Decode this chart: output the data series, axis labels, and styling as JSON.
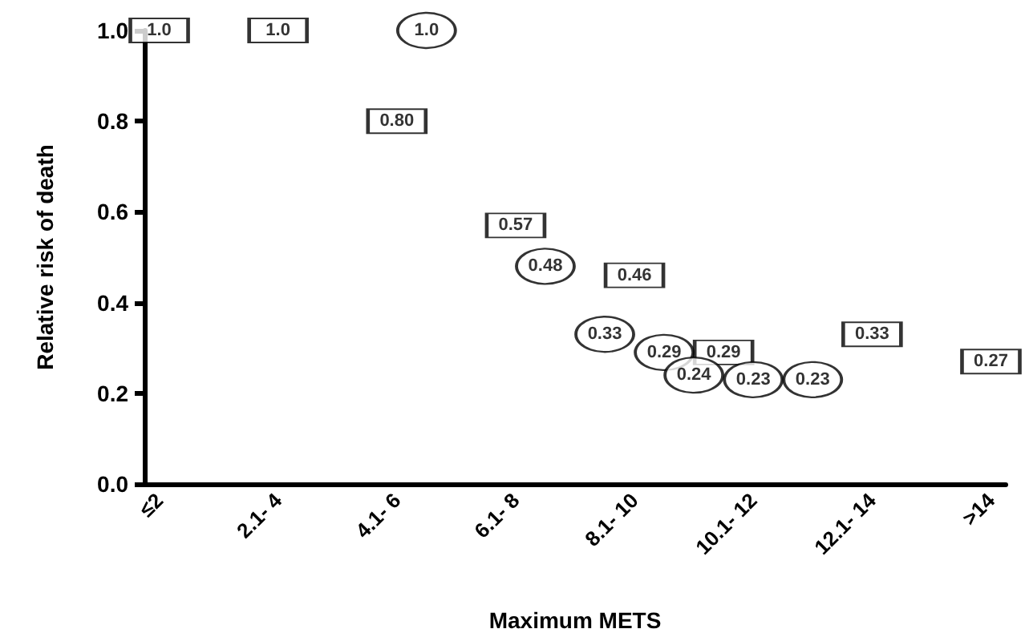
{
  "chart_data": {
    "type": "scatter",
    "xlabel": "Maximum METS",
    "ylabel": "Relative risk of death",
    "categories": [
      "≤2",
      null,
      null,
      null,
      "2.1- 4",
      null,
      null,
      null,
      "4.1- 6",
      null,
      null,
      null,
      "6.1- 8",
      null,
      null,
      null,
      "8.1- 10",
      null,
      null,
      null,
      "10.1- 12",
      null,
      null,
      null,
      "12.1- 14",
      null,
      null,
      null,
      ">14"
    ],
    "ylim": [
      0,
      1.0
    ],
    "yticks": [
      {
        "value": 0,
        "label": "0.0"
      },
      {
        "value": 0.2,
        "label": "0.2"
      },
      {
        "value": 0.4,
        "label": "0.4"
      },
      {
        "value": 0.6,
        "label": "0.6"
      },
      {
        "value": 0.8,
        "label": "0.8"
      },
      {
        "value": 1.0,
        "label": "1.0"
      }
    ],
    "grid": false,
    "series": [
      {
        "color": "#000000",
        "marker": "square",
        "values": [
          1.0,
          null,
          null,
          null,
          1.0,
          null,
          null,
          null,
          0.8,
          null,
          null,
          null,
          0.57,
          null,
          null,
          null,
          0.46,
          null,
          null,
          0.29,
          null,
          null,
          null,
          null,
          0.33,
          null,
          null,
          null,
          0.27
        ],
        "value_labels": [
          "1.0",
          null,
          null,
          null,
          "1.0",
          null,
          null,
          null,
          "0.80",
          null,
          null,
          null,
          "0.57",
          null,
          null,
          null,
          "0.46",
          null,
          null,
          "0.29",
          null,
          null,
          null,
          null,
          "0.33",
          null,
          null,
          null,
          "0.27"
        ]
      },
      {
        "color": "#000000",
        "marker": "circle",
        "values": [
          null,
          null,
          null,
          null,
          null,
          null,
          null,
          null,
          null,
          1.0,
          null,
          null,
          null,
          0.48,
          null,
          0.33,
          null,
          0.29,
          0.24,
          null,
          0.23,
          null,
          0.23,
          null,
          null,
          null,
          null,
          null,
          null
        ],
        "value_labels": [
          null,
          null,
          null,
          null,
          null,
          null,
          null,
          null,
          null,
          "1.0",
          null,
          null,
          null,
          "0.48",
          null,
          "0.33",
          null,
          "0.29",
          "0.24",
          null,
          "0.23",
          null,
          "0.23",
          null,
          null,
          null,
          null,
          null,
          null
        ]
      }
    ]
  }
}
